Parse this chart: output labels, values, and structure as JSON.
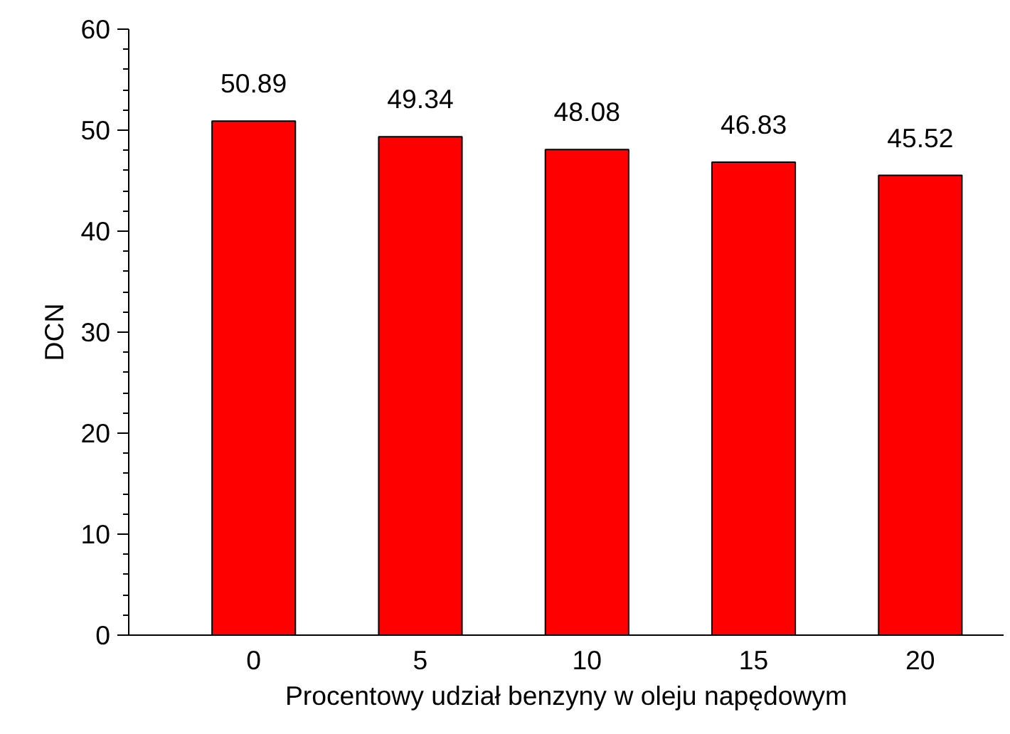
{
  "chart_data": {
    "type": "bar",
    "xlabel": "Procentowy udział benzyny w oleju napędowym",
    "ylabel": "DCN",
    "categories": [
      "0",
      "5",
      "10",
      "15",
      "20"
    ],
    "values": [
      50.89,
      49.34,
      48.08,
      46.83,
      45.52
    ],
    "color": "#ff0000",
    "data_labels": true,
    "ylim": [
      0,
      60
    ],
    "yticks": [
      0,
      10,
      20,
      30,
      40,
      50,
      60
    ],
    "grid": false
  }
}
